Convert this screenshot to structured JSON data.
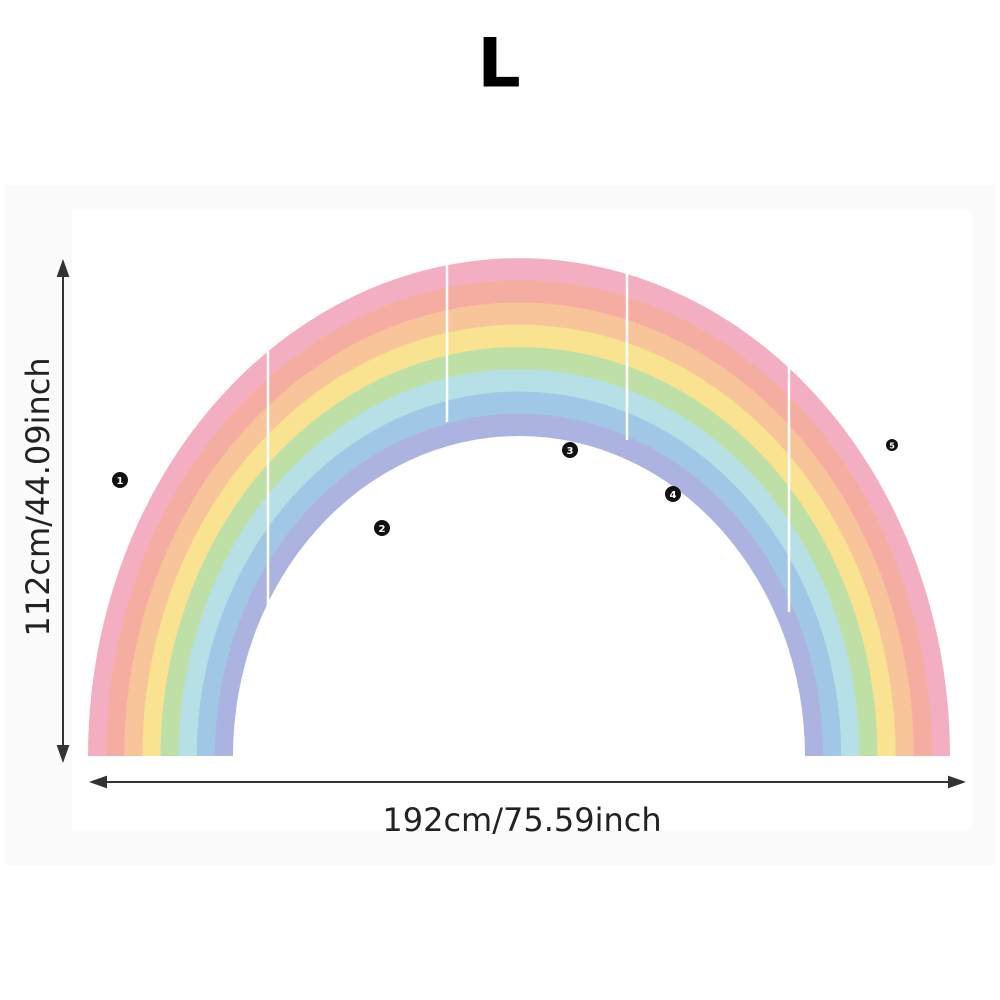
{
  "size_label": "L",
  "height_label": "112cm/44.09inch",
  "width_label": "192cm/75.59inch",
  "markers": [
    "1",
    "2",
    "3",
    "4",
    "5"
  ]
}
